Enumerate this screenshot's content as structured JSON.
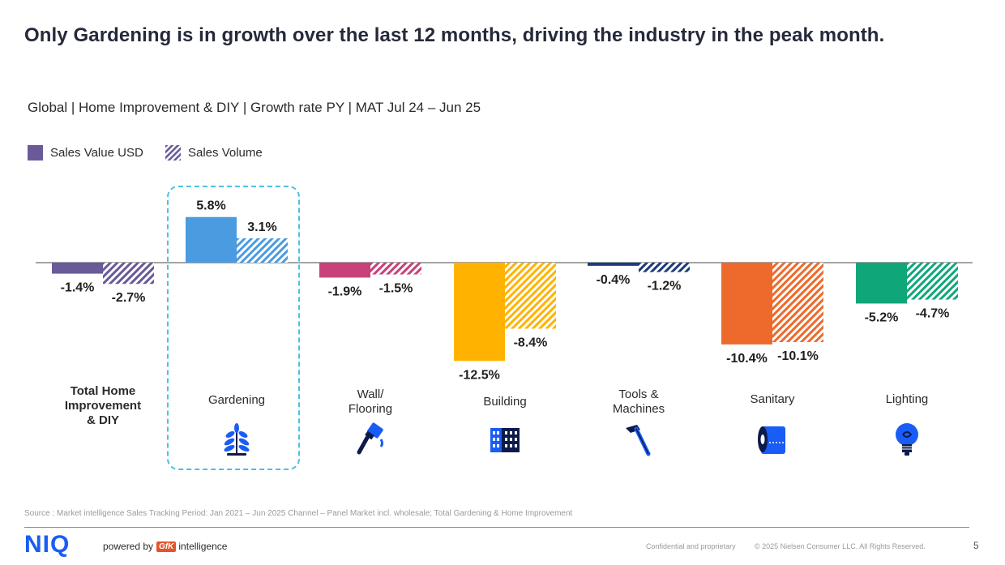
{
  "title": "Only Gardening is in growth over the last 12 months, driving the industry in the peak month.",
  "subtitle": "Global | Home Improvement & DIY | Growth rate PY | MAT Jul 24 – Jun 25",
  "legend": {
    "sales_value": "Sales Value USD",
    "sales_volume": "Sales Volume"
  },
  "categories": [
    {
      "label": "Total Home Improvement & DIY",
      "lines": [
        "Total Home",
        "Improvement",
        "& DIY"
      ],
      "bold": true,
      "icon": "none"
    },
    {
      "label": "Gardening",
      "lines": [
        "Gardening"
      ],
      "bold": false,
      "icon": "plant-icon"
    },
    {
      "label": "Wall/ Flooring",
      "lines": [
        "Wall/",
        "Flooring"
      ],
      "bold": false,
      "icon": "paint-brush-icon"
    },
    {
      "label": "Building",
      "lines": [
        "Building"
      ],
      "bold": false,
      "icon": "building-icon"
    },
    {
      "label": "Tools & Machines",
      "lines": [
        "Tools &",
        "Machines"
      ],
      "bold": false,
      "icon": "hammer-icon"
    },
    {
      "label": "Sanitary",
      "lines": [
        "Sanitary"
      ],
      "bold": false,
      "icon": "toilet-paper-icon"
    },
    {
      "label": "Lighting",
      "lines": [
        "Lighting"
      ],
      "bold": false,
      "icon": "light-bulb-icon"
    }
  ],
  "chart_data": {
    "type": "bar",
    "categories": [
      "Total Home Improvement & DIY",
      "Gardening",
      "Wall/ Flooring",
      "Building",
      "Tools & Machines",
      "Sanitary",
      "Lighting"
    ],
    "series": [
      {
        "name": "Sales Value USD",
        "values": [
          -1.4,
          5.8,
          -1.9,
          -12.5,
          -0.4,
          -10.4,
          -5.2
        ],
        "labels": [
          "-1.4%",
          "5.8%",
          "-1.9%",
          "-12.5%",
          "-0.4%",
          "-10.4%",
          "-5.2%"
        ],
        "pattern": "solid"
      },
      {
        "name": "Sales Volume",
        "values": [
          -2.7,
          3.1,
          -1.5,
          -8.4,
          -1.2,
          -10.1,
          -4.7
        ],
        "labels": [
          "-2.7%",
          "3.1%",
          "-1.5%",
          "-8.4%",
          "-1.2%",
          "-10.1%",
          "-4.7%"
        ],
        "pattern": "hatched"
      }
    ],
    "colors": [
      "#6a5a9a",
      "#4a9be0",
      "#c8417a",
      "#ffb300",
      "#1e3a7a",
      "#ee6a2c",
      "#0fa67a"
    ],
    "highlight_category": "Gardening",
    "title": "",
    "xlabel": "",
    "ylabel": "",
    "grid": false
  },
  "footer": {
    "source": "Source : Market intelligence Sales Tracking Period: Jan 2021 – Jun 2025 Channel – Panel Market incl. wholesale; Total Gardening & Home Improvement",
    "logo": "NIQ",
    "powered_by": "powered by",
    "gfk": "GfK",
    "intelligence": "intelligence",
    "confidential": "Confidential and proprietary",
    "copyright": "© 2025 Nielsen Consumer LLC. All Rights Reserved.",
    "page_number": "5"
  }
}
